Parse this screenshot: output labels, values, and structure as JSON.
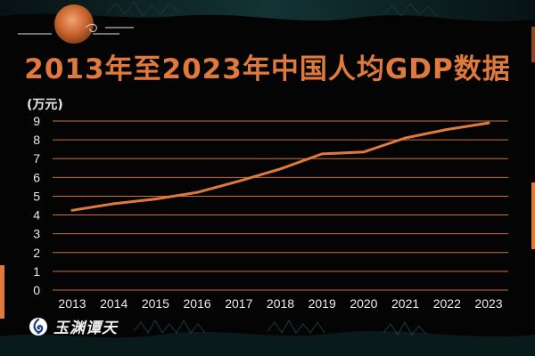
{
  "title": "2013年至2023年中国人均GDP数据",
  "unit_label": "(万元)",
  "logo_text": "玉渊谭天",
  "colors": {
    "background": "#040404",
    "accent": "#e07a3c",
    "line": "#e07a3c",
    "grid": "#e07a3c",
    "text": "#ececec",
    "deco_teal": "#1f5a5e"
  },
  "chart_data": {
    "type": "line",
    "title": "2013年至2023年中国人均GDP数据",
    "xlabel": "",
    "ylabel": "(万元)",
    "x": [
      "2013",
      "2014",
      "2015",
      "2016",
      "2017",
      "2018",
      "2019",
      "2020",
      "2021",
      "2022",
      "2023"
    ],
    "series": [
      {
        "values": [
          4.25,
          4.6,
          4.85,
          5.2,
          5.8,
          6.45,
          7.25,
          7.35,
          8.1,
          8.55,
          8.9
        ]
      }
    ],
    "ylim": [
      0,
      9
    ],
    "yticks": [
      0,
      1,
      2,
      3,
      4,
      5,
      6,
      7,
      8,
      9
    ],
    "grid": true,
    "legend": "none"
  }
}
